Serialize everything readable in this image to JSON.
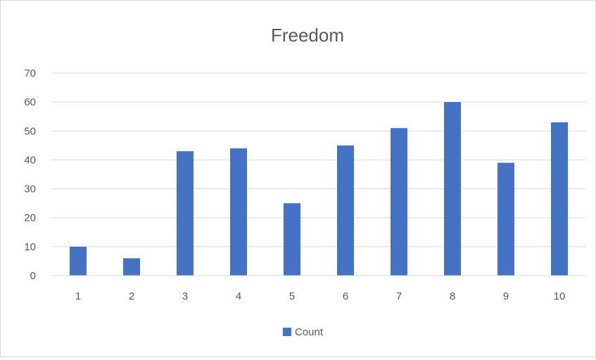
{
  "chart_data": {
    "type": "bar",
    "title": "Freedom",
    "xlabel": "",
    "ylabel": "",
    "categories": [
      "1",
      "2",
      "3",
      "4",
      "5",
      "6",
      "7",
      "8",
      "9",
      "10"
    ],
    "series": [
      {
        "name": "Count",
        "values": [
          10,
          6,
          43,
          44,
          25,
          45,
          51,
          60,
          39,
          53
        ],
        "color": "#4472c4"
      }
    ],
    "ylim": [
      0,
      70
    ],
    "yticks": [
      0,
      10,
      20,
      30,
      40,
      50,
      60,
      70
    ],
    "grid": true,
    "legend": "bottom"
  }
}
